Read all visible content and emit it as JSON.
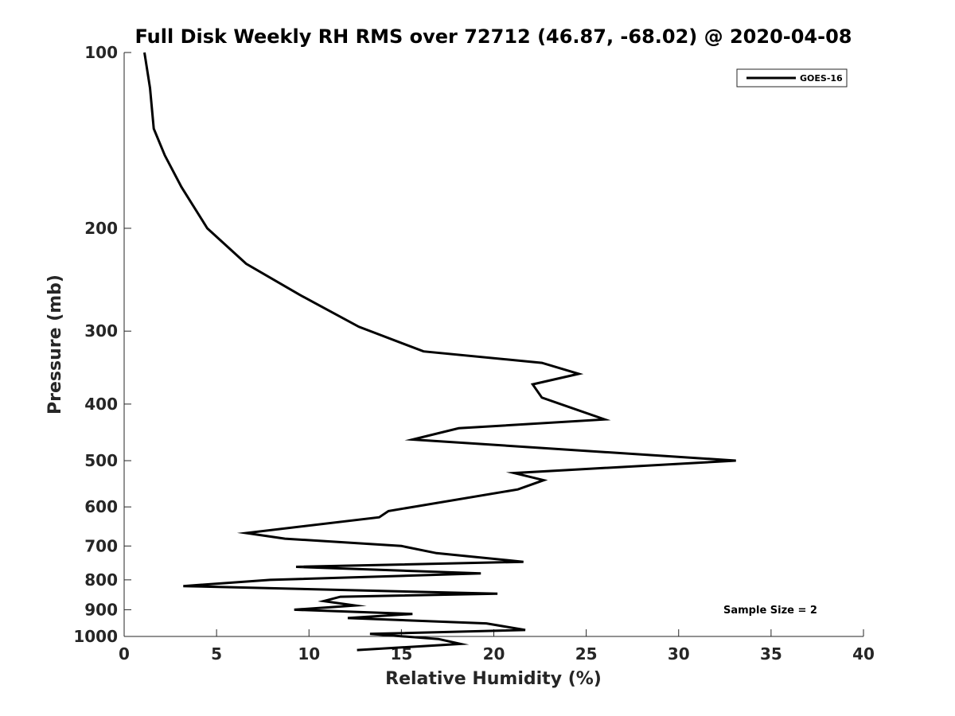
{
  "chart_data": {
    "type": "line",
    "title": "Full Disk Weekly RH RMS over 72712 (46.87, -68.02) @ 2020-04-08",
    "xlabel": "Relative Humidity (%)",
    "ylabel": "Pressure (mb)",
    "xlim": [
      0,
      40
    ],
    "ylim": [
      100,
      1000
    ],
    "yscale": "log",
    "y_reversed": true,
    "grid": false,
    "legend_position": "top-right",
    "x_ticks": [
      0,
      5,
      10,
      15,
      20,
      25,
      30,
      35,
      40
    ],
    "y_ticks": [
      100,
      200,
      300,
      400,
      500,
      600,
      700,
      800,
      900,
      1000
    ],
    "annotation": "Sample Size = 2",
    "series": [
      {
        "name": "GOES-16",
        "color": "#000000",
        "x": [
          1.1,
          1.4,
          1.6,
          2.2,
          3.1,
          4.5,
          6.6,
          9.5,
          12.7,
          16.2,
          22.6,
          24.6,
          22.1,
          22.6,
          26.0,
          18.1,
          15.6,
          33.1,
          21.1,
          22.7,
          21.3,
          14.3,
          13.8,
          6.6,
          8.7,
          15.0,
          16.9,
          21.6,
          9.3,
          19.3,
          7.9,
          3.2,
          20.2,
          11.7,
          10.8,
          12.5,
          9.2,
          15.6,
          12.1,
          19.6,
          21.7,
          13.3,
          17.0,
          18.2,
          12.6
        ],
        "y": [
          100,
          115,
          135,
          150,
          170,
          200,
          230,
          260,
          295,
          325,
          340,
          355,
          370,
          390,
          425,
          440,
          460,
          500,
          525,
          540,
          560,
          610,
          625,
          665,
          680,
          700,
          720,
          745,
          760,
          780,
          800,
          820,
          845,
          855,
          870,
          885,
          900,
          915,
          930,
          950,
          975,
          990,
          1010,
          1030,
          1055
        ]
      }
    ]
  }
}
